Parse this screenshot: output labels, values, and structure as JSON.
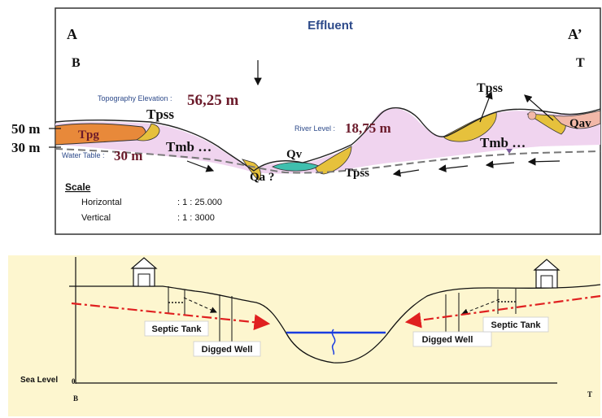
{
  "top": {
    "title": "Effluent",
    "corner_a": "A",
    "corner_a_prime": "A’",
    "corner_b": "B",
    "corner_t": "T",
    "y_label_50": "50 m",
    "y_label_30": "30 m",
    "topo_label": "Topography Elevation :",
    "topo_value": "56,25 m",
    "river_label": "River Level :",
    "river_value": "18,75 m",
    "water_table_label": "Water Table :",
    "water_table_value": "30 m",
    "units": {
      "tpg": "Tpg",
      "tpss_left": "Tpss",
      "tmb_left": "Tmb …",
      "qa": "Qa ?",
      "qv": "Qv",
      "tpss_mid": "Tpss",
      "tpss_right": "Tpss",
      "tmb_right": "Tmb …",
      "qav": "Qav"
    },
    "scale": {
      "heading": "Scale",
      "horizontal_label": "Horizontal",
      "horizontal_value": ": 1 : 25.000",
      "vertical_label": "Vertical",
      "vertical_value": ": 1 : 3000"
    },
    "colors": {
      "tpg": "#e8893a",
      "tpss": "#e6c13c",
      "tmb": "#f0d4ef",
      "qv": "#3fbfae",
      "qav": "#f2b8a8",
      "water_table": "#777777",
      "text_dark": "#6b1a2a",
      "text_blue": "#2d4a8a"
    }
  },
  "bottom": {
    "septic_left": "Septic Tank",
    "well_left": "Digged Well",
    "septic_right": "Septic Tank",
    "well_right": "Digged Well",
    "sea_level": "Sea Level",
    "zero": "0",
    "corner_b": "B",
    "corner_t": "T",
    "colors": {
      "background": "#fdf6cf",
      "flow_line": "#e02020",
      "water": "#1a3de0"
    }
  }
}
